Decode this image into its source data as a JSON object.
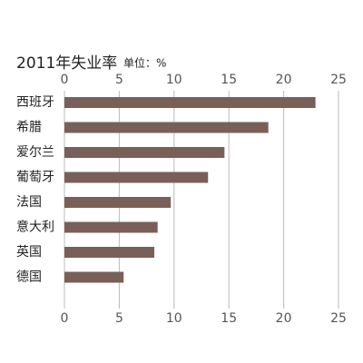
{
  "chart_data": {
    "type": "barh",
    "title": "2011年失业率",
    "subtitle": "单位：%",
    "categories": [
      "西班牙",
      "希腊",
      "爱尔兰",
      "葡萄牙",
      "法国",
      "意大利",
      "英国",
      "德国"
    ],
    "values": [
      22.9,
      18.6,
      14.6,
      13.1,
      9.7,
      8.5,
      8.2,
      5.4
    ],
    "color": "#7a5f58",
    "xlim": [
      0,
      25
    ],
    "xticks": [
      0,
      5,
      10,
      15,
      20,
      25
    ],
    "grid": true
  }
}
